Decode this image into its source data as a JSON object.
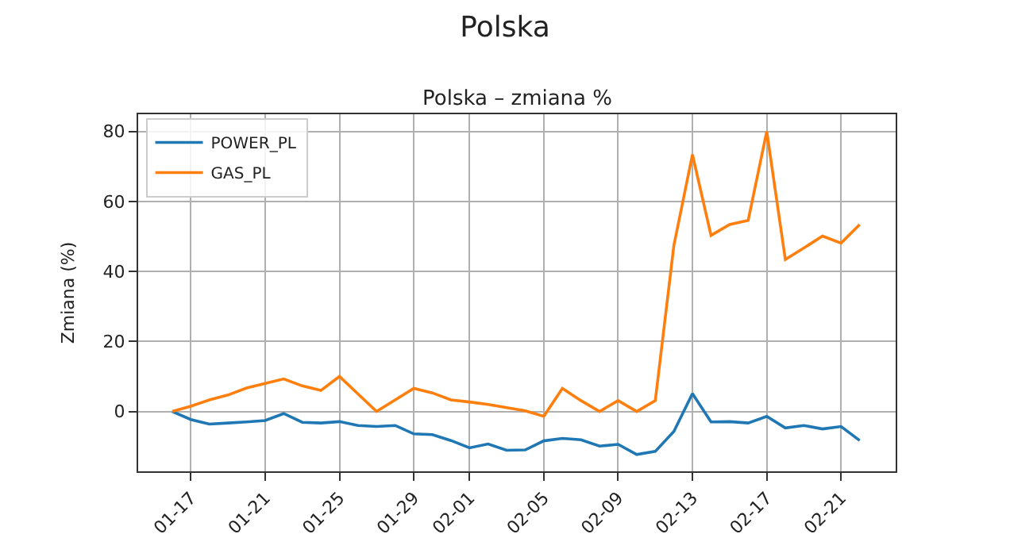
{
  "chart_data": {
    "type": "line",
    "title": "Polska",
    "subtitle": "Polska – zmiana %",
    "ylabel": "Zmiana (%)",
    "x": [
      "--01-16",
      "--01-17",
      "--01-18",
      "--01-19",
      "--01-20",
      "--01-21",
      "--01-22",
      "--01-23",
      "--01-24",
      "--01-25",
      "--01-26",
      "--01-27",
      "--01-28",
      "--01-29",
      "--01-30",
      "--01-31",
      "--02-01",
      "--02-02",
      "--02-03",
      "--02-04",
      "--02-05",
      "--02-06",
      "--02-07",
      "--02-08",
      "--02-09",
      "--02-10",
      "--02-11",
      "--02-12",
      "--02-13",
      "--02-14",
      "--02-15",
      "--02-16",
      "--02-17",
      "--02-18",
      "--02-19",
      "--02-20",
      "--02-21",
      "--02-22"
    ],
    "series": [
      {
        "name": "POWER_PL",
        "color": "#1f77b4",
        "values": [
          0,
          -2.3,
          -3.6,
          -3.3,
          -3,
          -2.6,
          -0.6,
          -3.1,
          -3.3,
          -2.9,
          -4,
          -4.3,
          -4,
          -6.4,
          -6.6,
          -8.3,
          -10.4,
          -9.3,
          -11.1,
          -11,
          -8.4,
          -7.7,
          -8.1,
          -9.9,
          -9.4,
          -12.3,
          -11.4,
          -5.7,
          5.1,
          -3,
          -2.9,
          -3.3,
          -1.4,
          -4.7,
          -4,
          -5,
          -4.3,
          -8.3
        ]
      },
      {
        "name": "GAS_PL",
        "color": "#ff7f0e",
        "values": [
          0,
          1.5,
          3.3,
          4.7,
          6.7,
          8,
          9.3,
          7.3,
          6,
          10,
          5,
          0,
          3.3,
          6.6,
          5.3,
          3.3,
          2.7,
          2,
          1.1,
          0.2,
          -1.4,
          6.6,
          3.1,
          0,
          3.1,
          0,
          3.1,
          47.4,
          73.4,
          50.3,
          53.4,
          54.6,
          80,
          43.4,
          46.7,
          50.1,
          48.1,
          53.4
        ]
      }
    ],
    "xlim": [
      "--01-14T04:00",
      "--02-23T22:30"
    ],
    "xticks": [
      {
        "value": "--01-17",
        "label": "01-17"
      },
      {
        "value": "--01-21",
        "label": "01-21"
      },
      {
        "value": "--01-25",
        "label": "01-25"
      },
      {
        "value": "--01-29",
        "label": "01-29"
      },
      {
        "value": "--02-01",
        "label": "02-01"
      },
      {
        "value": "--02-05",
        "label": "02-05"
      },
      {
        "value": "--02-09",
        "label": "02-09"
      },
      {
        "value": "--02-13",
        "label": "02-13"
      },
      {
        "value": "--02-17",
        "label": "02-17"
      },
      {
        "value": "--02-21",
        "label": "02-21"
      }
    ],
    "ylim": [
      -17.1,
      84.9
    ],
    "yticks": [
      0,
      20,
      40,
      60,
      80
    ],
    "grid": true,
    "legend": "top left",
    "marker": "none",
    "line_style": "solid"
  }
}
